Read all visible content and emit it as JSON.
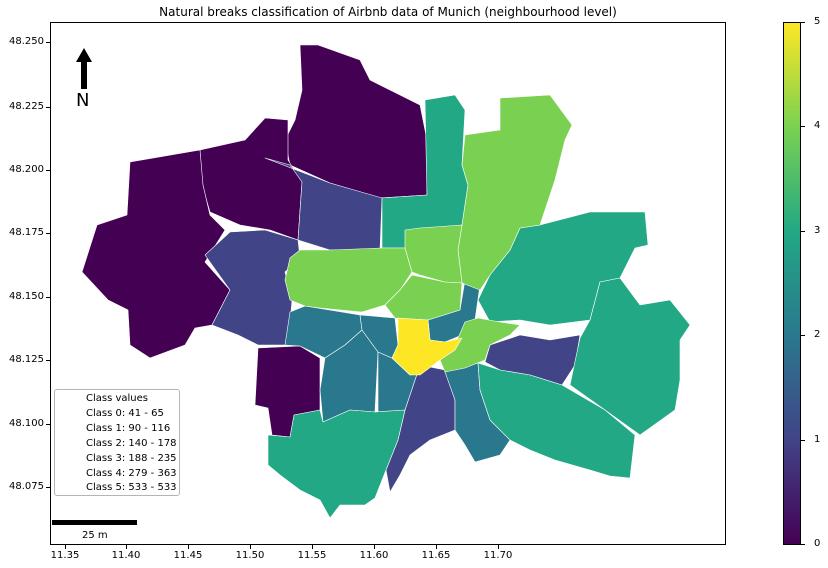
{
  "title": "Natural breaks classification of Airbnb data of Munich (neighbourhood level)",
  "x_ticks": [
    "11.35",
    "11.40",
    "11.45",
    "11.50",
    "11.55",
    "11.60",
    "11.65",
    "11.70"
  ],
  "y_ticks": [
    "48.250",
    "48.225",
    "48.200",
    "48.175",
    "48.150",
    "48.125",
    "48.100",
    "48.075"
  ],
  "colorbar": {
    "ticks": [
      "0",
      "1",
      "2",
      "3",
      "4",
      "5"
    ],
    "colors": [
      "#440154",
      "#414487",
      "#2a788e",
      "#22a884",
      "#7ad151",
      "#fde725"
    ]
  },
  "legend": {
    "title": "Class values",
    "items": [
      "Class 0: 41 - 65",
      "Class 1: 90 - 116",
      "Class 2: 140 - 178",
      "Class 3: 188 - 235",
      "Class 4: 279 - 363",
      "Class 5: 533 - 533"
    ]
  },
  "north_label": "N",
  "scale_label": "25 m"
}
